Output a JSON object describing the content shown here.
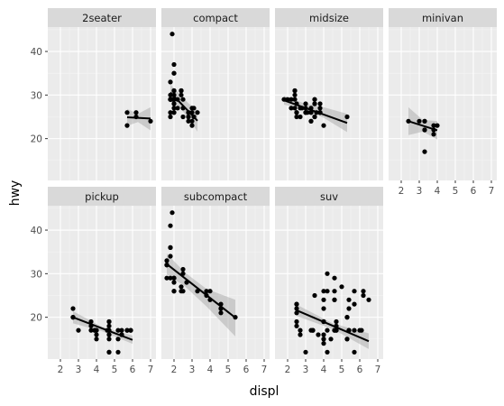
{
  "chart_data": {
    "type": "scatter",
    "facet_by": "class",
    "layout": "facet_wrap, 4 columns, shared axes",
    "xlabel": "displ",
    "ylabel": "hwy",
    "xlim": [
      1.3,
      7.3
    ],
    "ylim": [
      10.4,
      45.6
    ],
    "xticks": [
      2,
      3,
      4,
      5,
      6,
      7
    ],
    "yticks": [
      20,
      30,
      40
    ],
    "smooth": "linear fit with grey confidence ribbon",
    "panels": [
      {
        "name": "2seater",
        "x": [
          5.7,
          5.7,
          6.2,
          6.2,
          7.0
        ],
        "y": [
          26,
          23,
          26,
          25,
          24
        ],
        "fit": {
          "x": [
            5.7,
            7.0
          ],
          "y": [
            24.9,
            24.6
          ]
        },
        "ribbon": {
          "x": [
            5.7,
            6.3,
            7.0
          ],
          "lower": [
            22.9,
            23.8,
            21.9
          ],
          "upper": [
            26.8,
            25.7,
            27.2
          ]
        }
      },
      {
        "name": "compact",
        "x": [
          1.8,
          1.8,
          2.0,
          2.0,
          2.8,
          2.8,
          3.1,
          1.8,
          1.8,
          2.0,
          2.0,
          2.8,
          2.8,
          3.1,
          3.1,
          2.4,
          2.4,
          3.0,
          3.3,
          1.8,
          1.8,
          2.0,
          2.0,
          2.0,
          2.0,
          2.5,
          2.5,
          2.2,
          2.2,
          2.4,
          2.4,
          3.0,
          3.0,
          3.0,
          1.8,
          1.8,
          2.0,
          2.0,
          2.0,
          2.0,
          2.8,
          1.9,
          2.0,
          2.0,
          2.5,
          1.8,
          1.9
        ],
        "y": [
          29,
          29,
          31,
          30,
          26,
          26,
          27,
          26,
          25,
          28,
          27,
          25,
          25,
          25,
          25,
          31,
          31,
          27,
          26,
          30,
          33,
          35,
          37,
          35,
          29,
          27,
          25,
          27,
          29,
          30,
          31,
          23,
          24,
          26,
          29,
          29,
          28,
          29,
          26,
          31,
          24,
          44,
          29,
          26,
          29,
          29,
          29
        ],
        "fit": {
          "x": [
            1.8,
            3.3
          ],
          "y": [
            30.6,
            24.1
          ]
        },
        "ribbon": {
          "x": [
            1.8,
            2.3,
            2.8,
            3.3
          ],
          "lower": [
            28.8,
            27.3,
            24.6,
            21.6
          ],
          "upper": [
            32.4,
            30.3,
            28.1,
            26.6
          ]
        }
      },
      {
        "name": "midsize",
        "x": [
          2.4,
          2.4,
          3.1,
          3.5,
          3.6,
          2.4,
          3.0,
          3.3,
          3.3,
          3.3,
          3.3,
          3.3,
          3.8,
          3.8,
          3.8,
          5.3,
          2.5,
          2.5,
          2.5,
          2.5,
          2.7,
          2.7,
          3.5,
          3.5,
          3.0,
          3.0,
          3.5,
          3.5,
          3.8,
          3.8,
          4.0,
          2.2,
          2.2,
          2.4,
          2.4,
          3.0,
          3.0,
          3.5,
          1.8,
          2.0,
          2.8
        ],
        "y": [
          27,
          30,
          26,
          29,
          26,
          29,
          26,
          26,
          27,
          24,
          24,
          26,
          26,
          26,
          28,
          25,
          26,
          25,
          28,
          26,
          27,
          25,
          25,
          25,
          27,
          28,
          29,
          28,
          27,
          26,
          23,
          27,
          29,
          31,
          31,
          26,
          26,
          28,
          29,
          29,
          27
        ],
        "fit": {
          "x": [
            1.8,
            5.3
          ],
          "y": [
            28.8,
            23.6
          ]
        },
        "ribbon": {
          "x": [
            1.8,
            2.9,
            4.0,
            5.3
          ],
          "lower": [
            27.8,
            26.7,
            24.8,
            21.5
          ],
          "upper": [
            29.8,
            28.1,
            27.2,
            25.7
          ]
        }
      },
      {
        "name": "minivan",
        "x": [
          2.4,
          3.0,
          3.3,
          3.3,
          3.3,
          3.3,
          3.3,
          3.8,
          3.8,
          3.8,
          4.0
        ],
        "y": [
          24,
          24,
          22,
          22,
          24,
          24,
          17,
          22,
          21,
          23,
          23
        ],
        "fit": {
          "x": [
            2.4,
            4.0
          ],
          "y": [
            24.0,
            21.9
          ]
        },
        "ribbon": {
          "x": [
            2.4,
            3.2,
            4.0
          ],
          "lower": [
            20.8,
            21.6,
            19.8
          ],
          "upper": [
            27.2,
            24.3,
            24.0
          ]
        }
      },
      {
        "name": "pickup",
        "x": [
          2.7,
          2.7,
          2.7,
          3.0,
          3.7,
          3.7,
          3.9,
          3.9,
          4.7,
          4.7,
          4.7,
          5.2,
          5.2,
          5.7,
          5.9,
          4.7,
          4.7,
          4.7,
          4.7,
          4.7,
          4.7,
          5.2,
          5.7,
          5.9,
          4.0,
          4.0,
          4.0,
          4.0,
          4.6,
          5.4,
          5.4,
          5.4,
          3.7
        ],
        "y": [
          20,
          20,
          22,
          17,
          19,
          18,
          17,
          17,
          19,
          19,
          12,
          17,
          15,
          17,
          17,
          12,
          17,
          16,
          18,
          15,
          16,
          12,
          17,
          17,
          16,
          17,
          15,
          17,
          17,
          16,
          16,
          17,
          17
        ],
        "fit": {
          "x": [
            2.7,
            6.0
          ],
          "y": [
            20.0,
            14.8
          ]
        },
        "ribbon": {
          "x": [
            2.7,
            4.3,
            6.0
          ],
          "lower": [
            18.6,
            16.8,
            13.9
          ],
          "upper": [
            21.4,
            17.8,
            15.8
          ]
        }
      },
      {
        "name": "subcompact",
        "x": [
          3.8,
          3.8,
          4.0,
          4.0,
          4.6,
          4.6,
          4.6,
          4.6,
          5.4,
          1.6,
          1.6,
          1.6,
          1.6,
          1.6,
          1.8,
          1.8,
          1.8,
          2.0,
          2.4,
          2.4,
          2.5,
          2.5,
          3.3,
          2.0,
          2.0,
          2.0,
          2.0,
          2.7,
          1.8,
          1.8,
          1.9,
          2.0,
          2.5
        ],
        "y": [
          26,
          25,
          26,
          24,
          21,
          22,
          23,
          22,
          20,
          33,
          32,
          32,
          29,
          32,
          34,
          36,
          36,
          29,
          26,
          27,
          30,
          31,
          26,
          26,
          28,
          26,
          29,
          28,
          29,
          41,
          44,
          29,
          26
        ],
        "fit": {
          "x": [
            1.6,
            5.4
          ],
          "y": [
            32.2,
            19.9
          ]
        },
        "ribbon": {
          "x": [
            1.6,
            2.6,
            3.8,
            5.4
          ],
          "lower": [
            29.8,
            27.1,
            22.5,
            15.6
          ],
          "upper": [
            34.6,
            30.3,
            26.5,
            24.0
          ]
        }
      },
      {
        "name": "suv",
        "x": [
          5.3,
          5.3,
          5.3,
          5.7,
          6.0,
          5.7,
          5.7,
          6.2,
          6.2,
          6.5,
          4.0,
          4.0,
          4.0,
          4.6,
          5.0,
          4.2,
          4.2,
          4.6,
          4.6,
          4.6,
          5.4,
          5.4,
          4.0,
          4.0,
          4.6,
          5.4,
          2.5,
          2.5,
          2.5,
          2.5,
          2.5,
          2.5,
          2.7,
          3.4,
          4.0,
          4.7,
          4.2,
          4.2,
          4.4,
          4.6,
          5.4,
          3.0,
          3.3,
          4.0,
          4.7,
          4.0,
          3.7,
          5.7,
          6.1,
          4.7,
          2.7,
          3.4,
          5.3,
          4.7,
          4.0,
          3.5
        ],
        "y": [
          20,
          15,
          20,
          17,
          17,
          26,
          23,
          26,
          25,
          24,
          19,
          14,
          15,
          17,
          27,
          30,
          26,
          29,
          26,
          24,
          24,
          22,
          22,
          24,
          24,
          17,
          22,
          21,
          23,
          23,
          19,
          18,
          17,
          17,
          19,
          19,
          12,
          17,
          15,
          17,
          17,
          12,
          17,
          16,
          18,
          15,
          16,
          12,
          17,
          17,
          16,
          17,
          15,
          17,
          26,
          25
        ],
        "fit": {
          "x": [
            2.5,
            6.5
          ],
          "y": [
            21.6,
            14.5
          ]
        },
        "ribbon": {
          "x": [
            2.5,
            4.5,
            6.5
          ],
          "lower": [
            20.3,
            17.3,
            12.7
          ],
          "upper": [
            22.9,
            18.6,
            16.3
          ]
        }
      }
    ]
  }
}
